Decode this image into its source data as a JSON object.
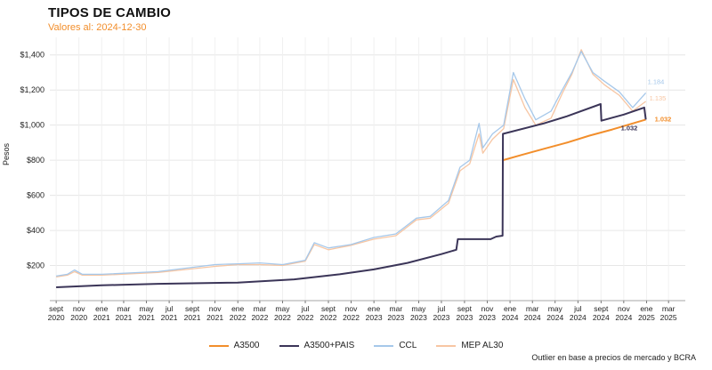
{
  "chart_data": {
    "type": "line",
    "title": "TIPOS DE CAMBIO",
    "subtitle": "Valores al: 2024-12-30",
    "ylabel": "Pesos",
    "xlabel": "",
    "caption": "Outlier en base a precios de mercado y BCRA",
    "ylim": [
      0,
      1500
    ],
    "yticks": [
      200,
      400,
      600,
      800,
      1000,
      1200,
      1400
    ],
    "ytick_labels": [
      "$200",
      "$400",
      "$600",
      "$800",
      "$1,000",
      "$1,200",
      "$1,400"
    ],
    "xlim": [
      "2020-08-15",
      "2025-04-15"
    ],
    "xticks": [
      {
        "date": "2020-09-01",
        "label": [
          "sept",
          "2020"
        ]
      },
      {
        "date": "2020-11-01",
        "label": [
          "nov",
          "2020"
        ]
      },
      {
        "date": "2021-01-01",
        "label": [
          "ene",
          "2021"
        ]
      },
      {
        "date": "2021-03-01",
        "label": [
          "mar",
          "2021"
        ]
      },
      {
        "date": "2021-05-01",
        "label": [
          "may",
          "2021"
        ]
      },
      {
        "date": "2021-07-01",
        "label": [
          "jul",
          "2021"
        ]
      },
      {
        "date": "2021-09-01",
        "label": [
          "sept",
          "2021"
        ]
      },
      {
        "date": "2021-11-01",
        "label": [
          "nov",
          "2021"
        ]
      },
      {
        "date": "2022-01-01",
        "label": [
          "ene",
          "2022"
        ]
      },
      {
        "date": "2022-03-01",
        "label": [
          "mar",
          "2022"
        ]
      },
      {
        "date": "2022-05-01",
        "label": [
          "may",
          "2022"
        ]
      },
      {
        "date": "2022-07-01",
        "label": [
          "jul",
          "2022"
        ]
      },
      {
        "date": "2022-09-01",
        "label": [
          "sept",
          "2022"
        ]
      },
      {
        "date": "2022-11-01",
        "label": [
          "nov",
          "2022"
        ]
      },
      {
        "date": "2023-01-01",
        "label": [
          "ene",
          "2023"
        ]
      },
      {
        "date": "2023-03-01",
        "label": [
          "mar",
          "2023"
        ]
      },
      {
        "date": "2023-05-01",
        "label": [
          "may",
          "2023"
        ]
      },
      {
        "date": "2023-07-01",
        "label": [
          "jul",
          "2023"
        ]
      },
      {
        "date": "2023-09-01",
        "label": [
          "sept",
          "2023"
        ]
      },
      {
        "date": "2023-11-01",
        "label": [
          "nov",
          "2023"
        ]
      },
      {
        "date": "2024-01-01",
        "label": [
          "ene",
          "2024"
        ]
      },
      {
        "date": "2024-03-01",
        "label": [
          "mar",
          "2024"
        ]
      },
      {
        "date": "2024-05-01",
        "label": [
          "may",
          "2024"
        ]
      },
      {
        "date": "2024-07-01",
        "label": [
          "jul",
          "2024"
        ]
      },
      {
        "date": "2024-09-01",
        "label": [
          "sept",
          "2024"
        ]
      },
      {
        "date": "2024-11-01",
        "label": [
          "nov",
          "2024"
        ]
      },
      {
        "date": "2025-01-01",
        "label": [
          "ene",
          "2025"
        ]
      },
      {
        "date": "2025-03-01",
        "label": [
          "mar",
          "2025"
        ]
      }
    ],
    "grid": true,
    "legend_position": "bottom",
    "series": [
      {
        "name": "A3500",
        "color": "#f28e2b",
        "points": [
          [
            "2023-12-13",
            800
          ],
          [
            "2024-02-01",
            830
          ],
          [
            "2024-04-01",
            865
          ],
          [
            "2024-06-01",
            900
          ],
          [
            "2024-08-01",
            940
          ],
          [
            "2024-10-01",
            975
          ],
          [
            "2024-12-30",
            1032
          ]
        ],
        "end_label": "1.032"
      },
      {
        "name": "A3500+PAIS",
        "color": "#3b3558",
        "points": [
          [
            "2020-09-01",
            76
          ],
          [
            "2021-01-01",
            87
          ],
          [
            "2021-06-01",
            96
          ],
          [
            "2022-01-01",
            103
          ],
          [
            "2022-06-01",
            121
          ],
          [
            "2022-10-01",
            150
          ],
          [
            "2023-01-01",
            178
          ],
          [
            "2023-04-01",
            215
          ],
          [
            "2023-07-01",
            265
          ],
          [
            "2023-08-10",
            290
          ],
          [
            "2023-08-14",
            350
          ],
          [
            "2023-11-10",
            350
          ],
          [
            "2023-11-25",
            365
          ],
          [
            "2023-12-12",
            370
          ],
          [
            "2023-12-13",
            950
          ],
          [
            "2024-04-01",
            1010
          ],
          [
            "2024-06-01",
            1050
          ],
          [
            "2024-08-31",
            1120
          ],
          [
            "2024-09-02",
            1025
          ],
          [
            "2024-11-01",
            1060
          ],
          [
            "2024-12-26",
            1100
          ],
          [
            "2024-12-30",
            1032
          ]
        ],
        "end_label": "1.032"
      },
      {
        "name": "CCL",
        "color": "#a6c8ea",
        "points": [
          [
            "2020-09-01",
            140
          ],
          [
            "2020-10-01",
            150
          ],
          [
            "2020-10-20",
            175
          ],
          [
            "2020-11-10",
            150
          ],
          [
            "2021-01-01",
            150
          ],
          [
            "2021-06-01",
            165
          ],
          [
            "2021-11-01",
            205
          ],
          [
            "2022-01-01",
            210
          ],
          [
            "2022-03-01",
            215
          ],
          [
            "2022-05-01",
            205
          ],
          [
            "2022-07-01",
            230
          ],
          [
            "2022-07-25",
            330
          ],
          [
            "2022-09-01",
            300
          ],
          [
            "2022-11-01",
            320
          ],
          [
            "2023-01-01",
            360
          ],
          [
            "2023-03-01",
            380
          ],
          [
            "2023-04-25",
            470
          ],
          [
            "2023-06-01",
            480
          ],
          [
            "2023-07-20",
            570
          ],
          [
            "2023-08-20",
            760
          ],
          [
            "2023-09-15",
            800
          ],
          [
            "2023-10-10",
            1010
          ],
          [
            "2023-10-20",
            870
          ],
          [
            "2023-11-15",
            950
          ],
          [
            "2023-12-15",
            1000
          ],
          [
            "2024-01-10",
            1300
          ],
          [
            "2024-02-10",
            1150
          ],
          [
            "2024-03-10",
            1030
          ],
          [
            "2024-04-20",
            1080
          ],
          [
            "2024-05-20",
            1200
          ],
          [
            "2024-06-15",
            1300
          ],
          [
            "2024-07-10",
            1420
          ],
          [
            "2024-08-10",
            1300
          ],
          [
            "2024-09-10",
            1250
          ],
          [
            "2024-10-20",
            1190
          ],
          [
            "2024-11-25",
            1100
          ],
          [
            "2024-12-30",
            1184
          ]
        ],
        "end_label": "1.184"
      },
      {
        "name": "MEP AL30",
        "color": "#f7c6a3",
        "points": [
          [
            "2020-09-01",
            135
          ],
          [
            "2020-10-01",
            145
          ],
          [
            "2020-10-20",
            165
          ],
          [
            "2020-11-10",
            145
          ],
          [
            "2021-01-01",
            145
          ],
          [
            "2021-06-01",
            160
          ],
          [
            "2021-11-01",
            195
          ],
          [
            "2022-01-01",
            205
          ],
          [
            "2022-03-01",
            205
          ],
          [
            "2022-05-01",
            200
          ],
          [
            "2022-07-01",
            225
          ],
          [
            "2022-07-25",
            320
          ],
          [
            "2022-09-01",
            290
          ],
          [
            "2022-11-01",
            315
          ],
          [
            "2023-01-01",
            350
          ],
          [
            "2023-03-01",
            370
          ],
          [
            "2023-04-25",
            460
          ],
          [
            "2023-06-01",
            470
          ],
          [
            "2023-07-20",
            555
          ],
          [
            "2023-08-20",
            740
          ],
          [
            "2023-09-15",
            780
          ],
          [
            "2023-10-10",
            950
          ],
          [
            "2023-10-20",
            840
          ],
          [
            "2023-11-15",
            920
          ],
          [
            "2023-12-15",
            980
          ],
          [
            "2024-01-10",
            1260
          ],
          [
            "2024-02-10",
            1100
          ],
          [
            "2024-03-10",
            1000
          ],
          [
            "2024-04-20",
            1040
          ],
          [
            "2024-05-20",
            1180
          ],
          [
            "2024-06-15",
            1290
          ],
          [
            "2024-07-10",
            1430
          ],
          [
            "2024-08-10",
            1290
          ],
          [
            "2024-09-10",
            1230
          ],
          [
            "2024-10-20",
            1170
          ],
          [
            "2024-11-25",
            1080
          ],
          [
            "2024-12-30",
            1135
          ]
        ],
        "end_label": "1.135"
      }
    ]
  }
}
